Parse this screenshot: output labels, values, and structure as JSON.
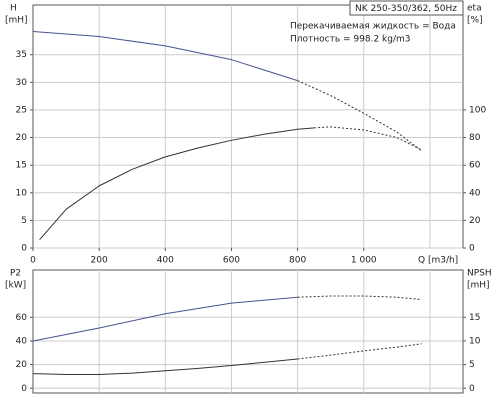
{
  "chart_data": [
    {
      "type": "line",
      "title": "NK 250-350/362, 50Hz",
      "annotations": [
        "Перекачиваемая жидкость = Вода",
        "Плотность = 998.2 kg/m3"
      ],
      "ylabel": [
        "H",
        "[mH]"
      ],
      "y2label": [
        "eta",
        "[%]"
      ],
      "xlabel": "Q [m3/h]",
      "xlim": [
        0,
        1300
      ],
      "xticks": [
        0,
        200,
        400,
        600,
        800,
        {
          "value": 1000,
          "label": "1 000"
        }
      ],
      "xgrid": [
        200,
        400,
        600,
        800,
        1000,
        1200
      ],
      "ylim": [
        0,
        44
      ],
      "yticks": [
        0,
        5,
        10,
        15,
        20,
        25,
        30,
        35
      ],
      "y2lim": [
        0,
        176
      ],
      "y2ticks": [
        0,
        20,
        40,
        60,
        80,
        100
      ],
      "grid": true,
      "series": [
        {
          "axis": "y",
          "style": "solid",
          "color": "#44548e",
          "x": [
            0,
            200,
            400,
            600,
            800
          ],
          "values": [
            39.2,
            38.3,
            36.6,
            34.1,
            30.3
          ]
        },
        {
          "axis": "y",
          "style": "dashed",
          "color": "#333333",
          "x": [
            800,
            900,
            1000,
            1100,
            1175
          ],
          "values": [
            30.3,
            27.6,
            24.4,
            21.0,
            17.6
          ]
        },
        {
          "axis": "y2",
          "style": "solid",
          "color": "#333333",
          "x": [
            20,
            100,
            200,
            300,
            400,
            500,
            600,
            700,
            800,
            850
          ],
          "values": [
            6,
            28,
            45,
            57,
            66,
            72.5,
            78,
            82.5,
            86,
            87
          ]
        },
        {
          "axis": "y2",
          "style": "dashed",
          "color": "#333333",
          "x": [
            850,
            900,
            1000,
            1100,
            1175
          ],
          "values": [
            87,
            87.7,
            85.5,
            80,
            71
          ]
        }
      ]
    },
    {
      "type": "line",
      "ylabel": [
        "P2",
        "[kW]"
      ],
      "y2label": [
        "NPSH",
        "[mH]"
      ],
      "xlim": [
        0,
        1300
      ],
      "xgrid": [
        200,
        400,
        600,
        800,
        1000,
        1200
      ],
      "ylim": [
        -4,
        100
      ],
      "yticks": [
        0,
        20,
        40,
        60
      ],
      "y2lim": [
        -1,
        25
      ],
      "y2ticks": [
        0,
        5,
        10,
        15
      ],
      "grid": true,
      "series": [
        {
          "axis": "y",
          "style": "solid",
          "color": "#44548e",
          "x": [
            0,
            200,
            400,
            600,
            800
          ],
          "values": [
            40,
            51,
            63,
            72,
            77
          ]
        },
        {
          "axis": "y",
          "style": "dashed",
          "color": "#333333",
          "x": [
            800,
            900,
            1000,
            1100,
            1175
          ],
          "values": [
            77,
            78,
            78,
            77,
            75
          ]
        },
        {
          "axis": "y2",
          "style": "solid",
          "color": "#333333",
          "x": [
            0,
            100,
            200,
            300,
            400,
            500,
            600,
            700,
            800
          ],
          "values": [
            3.1,
            2.9,
            2.9,
            3.2,
            3.7,
            4.2,
            4.8,
            5.5,
            6.2
          ]
        },
        {
          "axis": "y2",
          "style": "dashed",
          "color": "#333333",
          "x": [
            800,
            900,
            1000,
            1100,
            1175
          ],
          "values": [
            6.2,
            7,
            7.9,
            8.7,
            9.4
          ]
        }
      ]
    }
  ]
}
